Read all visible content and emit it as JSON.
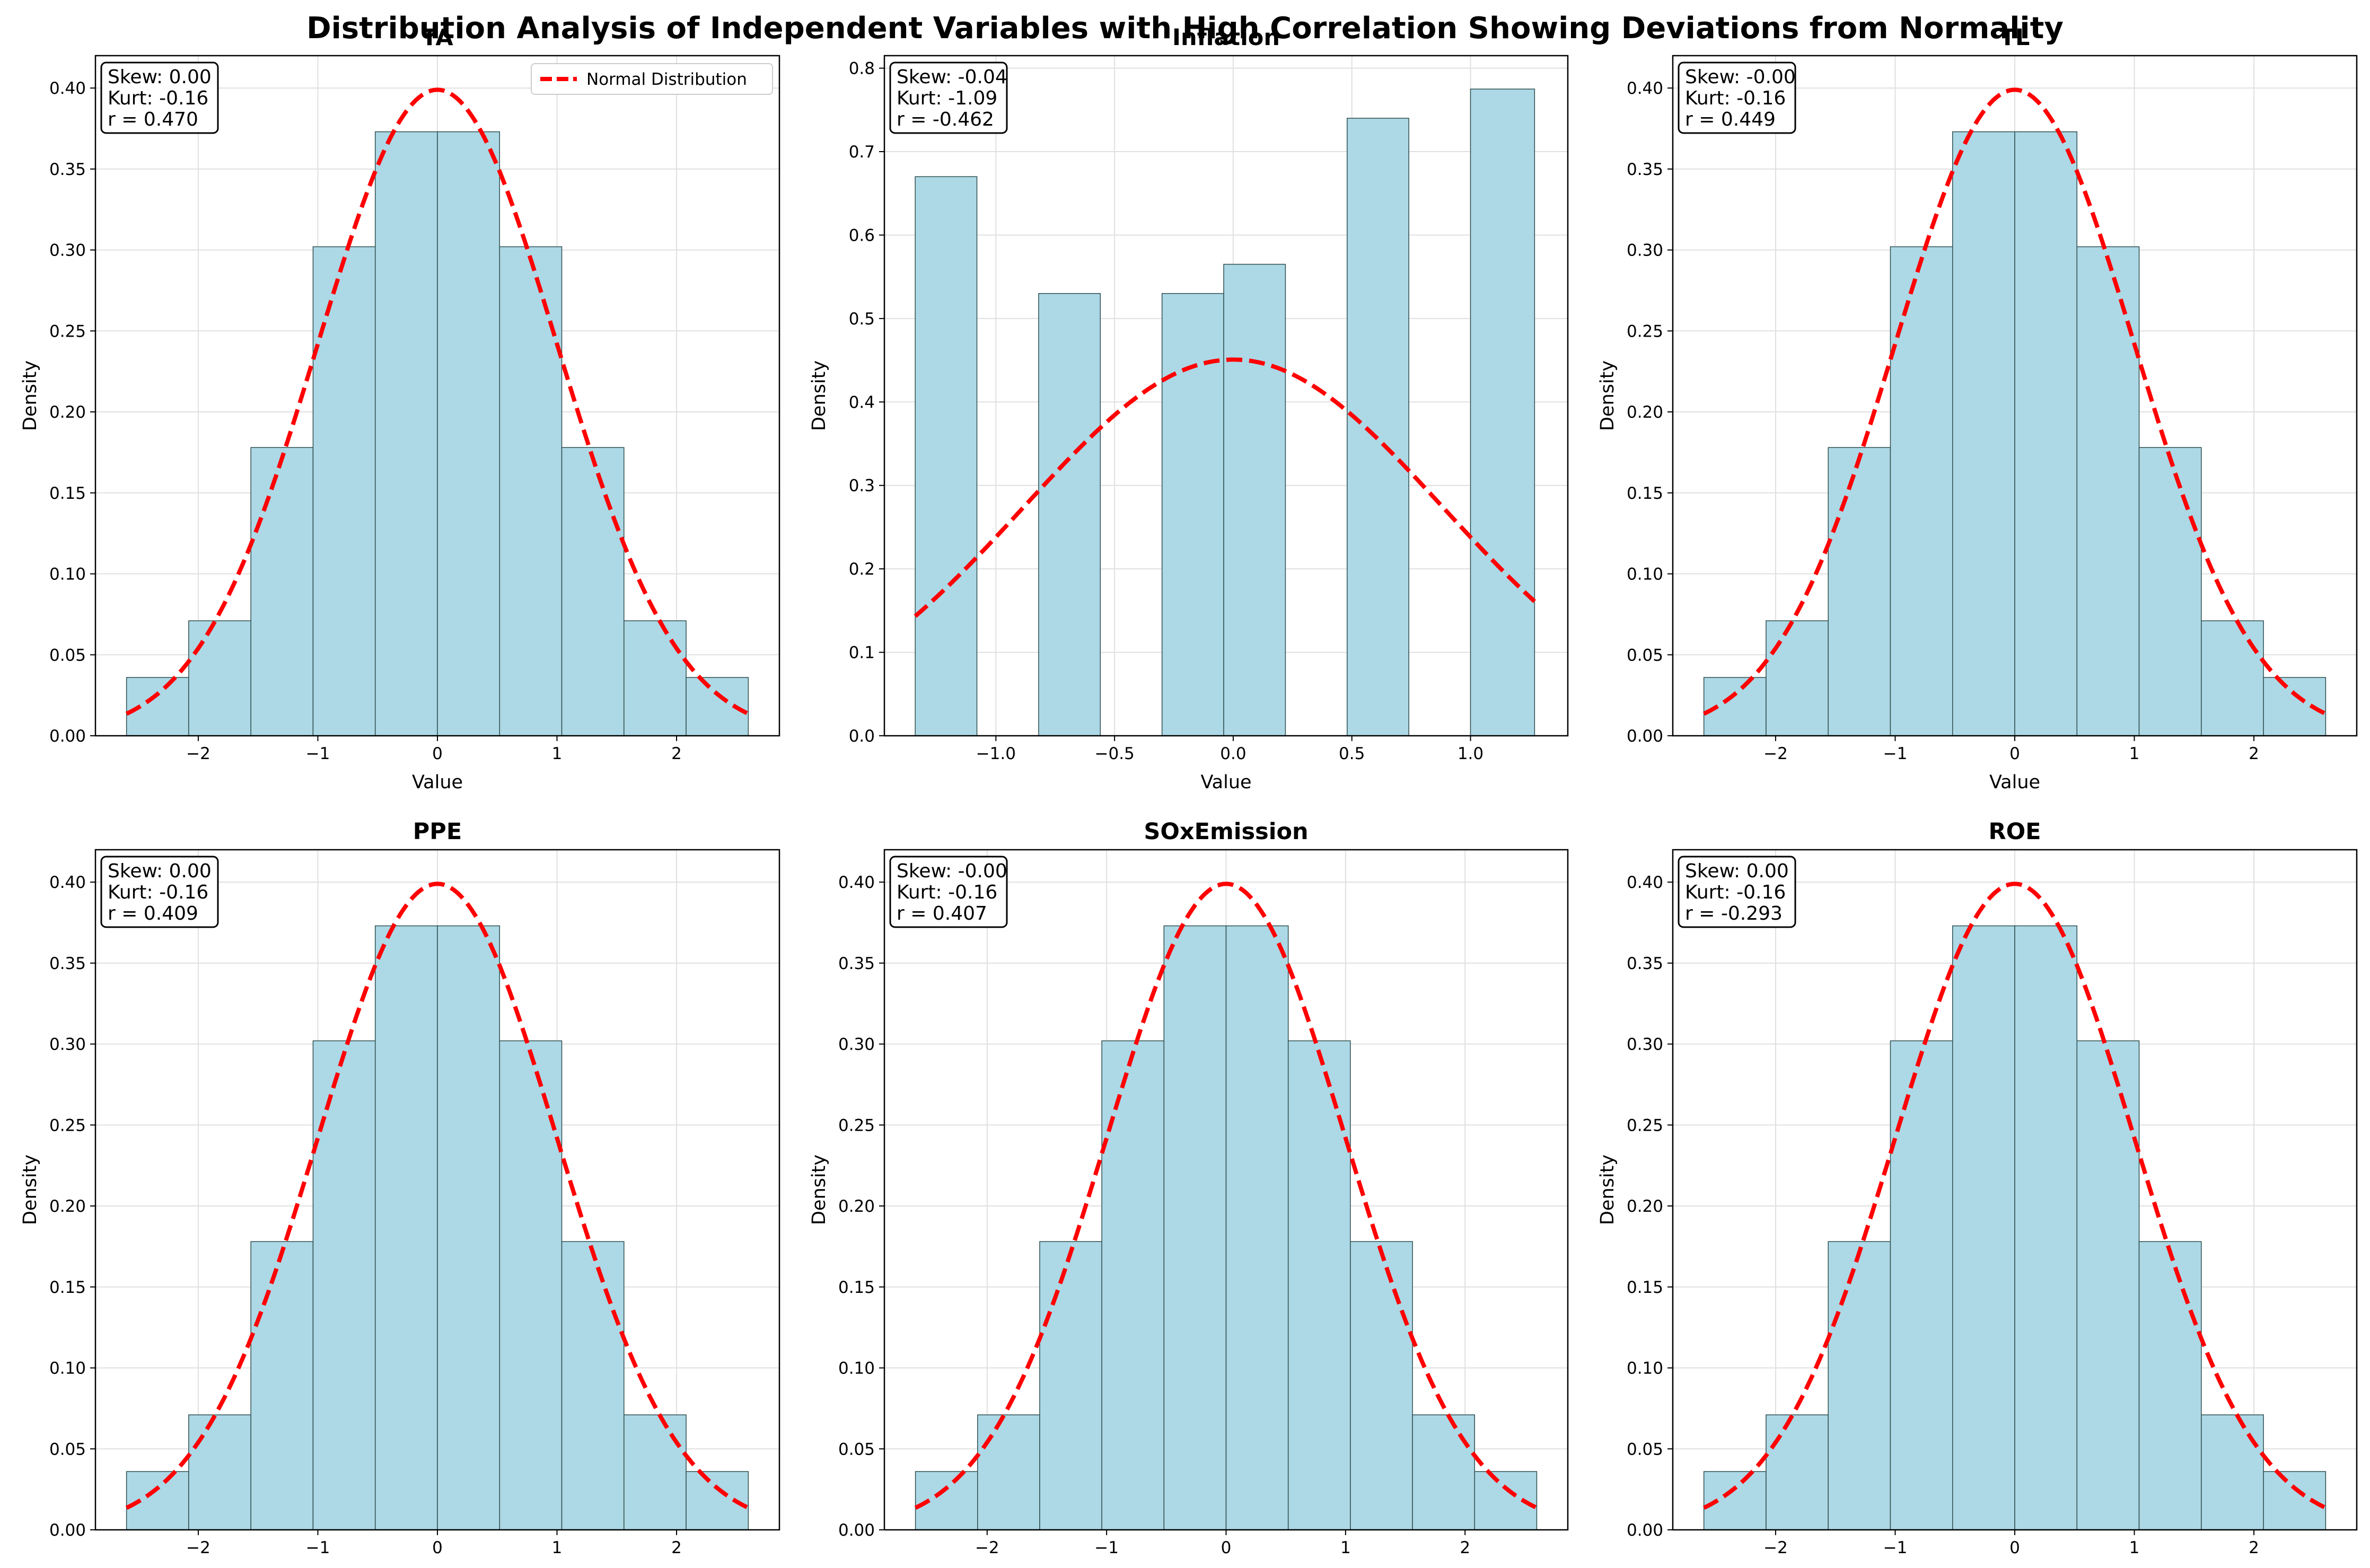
{
  "title": "Distribution Analysis of Independent Variables with High Correlation Showing Deviations from Normality",
  "colors": {
    "bar_fill": "#add8e6",
    "bar_edge": "#2f4f4f",
    "normal_curve": "#ff0000",
    "grid": "#e0e0e0"
  },
  "legend": {
    "label": "Normal Distribution",
    "location": "upper-right",
    "panel": "TA"
  },
  "chart_data": [
    {
      "type": "histogram",
      "title": "TA",
      "xlabel": "Value",
      "ylabel": "Density",
      "xlim": [
        -2.86,
        2.86
      ],
      "ylim": [
        0,
        0.42
      ],
      "xticks": [
        -2,
        -1,
        0,
        1,
        2
      ],
      "yticks": [
        0,
        0.05,
        0.1,
        0.15,
        0.2,
        0.25,
        0.3,
        0.35,
        0.4
      ],
      "tick_decimals": {
        "x": 0,
        "y": 2
      },
      "bins": [
        {
          "start": -2.6,
          "end": -2.08,
          "density": 0.036
        },
        {
          "start": -2.08,
          "end": -1.56,
          "density": 0.071
        },
        {
          "start": -1.56,
          "end": -1.04,
          "density": 0.178
        },
        {
          "start": -1.04,
          "end": -0.52,
          "density": 0.302
        },
        {
          "start": -0.52,
          "end": 0.0,
          "density": 0.373
        },
        {
          "start": 0.0,
          "end": 0.52,
          "density": 0.373
        },
        {
          "start": 0.52,
          "end": 1.04,
          "density": 0.302
        },
        {
          "start": 1.04,
          "end": 1.56,
          "density": 0.178
        },
        {
          "start": 1.56,
          "end": 2.08,
          "density": 0.071
        },
        {
          "start": 2.08,
          "end": 2.6,
          "density": 0.036
        }
      ],
      "normal_fit": {
        "mean": 0.0,
        "std": 1.0,
        "x_range": [
          -2.6,
          2.6
        ]
      },
      "stats_lines": [
        "Skew: 0.00",
        "Kurt: -0.16",
        "r = 0.470"
      ]
    },
    {
      "type": "histogram",
      "title": "Inflation",
      "xlabel": "Value",
      "ylabel": "Density",
      "xlim": [
        -1.47,
        1.41
      ],
      "ylim": [
        0,
        0.815
      ],
      "xticks": [
        -1.0,
        -0.5,
        0.0,
        0.5,
        1.0
      ],
      "yticks": [
        0,
        0.1,
        0.2,
        0.3,
        0.4,
        0.5,
        0.6,
        0.7,
        0.8
      ],
      "tick_decimals": {
        "x": 1,
        "y": 1
      },
      "bins": [
        {
          "start": -1.34,
          "end": -1.08,
          "density": 0.67
        },
        {
          "start": -0.82,
          "end": -0.56,
          "density": 0.53
        },
        {
          "start": -0.3,
          "end": -0.04,
          "density": 0.53
        },
        {
          "start": -0.04,
          "end": 0.22,
          "density": 0.565
        },
        {
          "start": 0.48,
          "end": 0.74,
          "density": 0.74
        },
        {
          "start": 1.0,
          "end": 1.27,
          "density": 0.775
        }
      ],
      "normal_fit": {
        "mean": 0.0,
        "std": 0.885,
        "x_range": [
          -1.34,
          1.27
        ]
      },
      "stats_lines": [
        "Skew: -0.04",
        "Kurt: -1.09",
        "r = -0.462"
      ]
    },
    {
      "type": "histogram",
      "title": "TL",
      "xlabel": "Value",
      "ylabel": "Density",
      "xlim": [
        -2.86,
        2.86
      ],
      "ylim": [
        0,
        0.42
      ],
      "xticks": [
        -2,
        -1,
        0,
        1,
        2
      ],
      "yticks": [
        0,
        0.05,
        0.1,
        0.15,
        0.2,
        0.25,
        0.3,
        0.35,
        0.4
      ],
      "tick_decimals": {
        "x": 0,
        "y": 2
      },
      "bins": [
        {
          "start": -2.6,
          "end": -2.08,
          "density": 0.036
        },
        {
          "start": -2.08,
          "end": -1.56,
          "density": 0.071
        },
        {
          "start": -1.56,
          "end": -1.04,
          "density": 0.178
        },
        {
          "start": -1.04,
          "end": -0.52,
          "density": 0.302
        },
        {
          "start": -0.52,
          "end": 0.0,
          "density": 0.373
        },
        {
          "start": 0.0,
          "end": 0.52,
          "density": 0.373
        },
        {
          "start": 0.52,
          "end": 1.04,
          "density": 0.302
        },
        {
          "start": 1.04,
          "end": 1.56,
          "density": 0.178
        },
        {
          "start": 1.56,
          "end": 2.08,
          "density": 0.071
        },
        {
          "start": 2.08,
          "end": 2.6,
          "density": 0.036
        }
      ],
      "normal_fit": {
        "mean": 0.0,
        "std": 1.0,
        "x_range": [
          -2.6,
          2.6
        ]
      },
      "stats_lines": [
        "Skew: -0.00",
        "Kurt: -0.16",
        "r = 0.449"
      ]
    },
    {
      "type": "histogram",
      "title": "PPE",
      "xlabel": "Value",
      "ylabel": "Density",
      "xlim": [
        -2.86,
        2.86
      ],
      "ylim": [
        0,
        0.42
      ],
      "xticks": [
        -2,
        -1,
        0,
        1,
        2
      ],
      "yticks": [
        0,
        0.05,
        0.1,
        0.15,
        0.2,
        0.25,
        0.3,
        0.35,
        0.4
      ],
      "tick_decimals": {
        "x": 0,
        "y": 2
      },
      "bins": [
        {
          "start": -2.6,
          "end": -2.08,
          "density": 0.036
        },
        {
          "start": -2.08,
          "end": -1.56,
          "density": 0.071
        },
        {
          "start": -1.56,
          "end": -1.04,
          "density": 0.178
        },
        {
          "start": -1.04,
          "end": -0.52,
          "density": 0.302
        },
        {
          "start": -0.52,
          "end": 0.0,
          "density": 0.373
        },
        {
          "start": 0.0,
          "end": 0.52,
          "density": 0.373
        },
        {
          "start": 0.52,
          "end": 1.04,
          "density": 0.302
        },
        {
          "start": 1.04,
          "end": 1.56,
          "density": 0.178
        },
        {
          "start": 1.56,
          "end": 2.08,
          "density": 0.071
        },
        {
          "start": 2.08,
          "end": 2.6,
          "density": 0.036
        }
      ],
      "normal_fit": {
        "mean": 0.0,
        "std": 1.0,
        "x_range": [
          -2.6,
          2.6
        ]
      },
      "stats_lines": [
        "Skew: 0.00",
        "Kurt: -0.16",
        "r = 0.409"
      ]
    },
    {
      "type": "histogram",
      "title": "SOxEmission",
      "xlabel": "Value",
      "ylabel": "Density",
      "xlim": [
        -2.86,
        2.86
      ],
      "ylim": [
        0,
        0.42
      ],
      "xticks": [
        -2,
        -1,
        0,
        1,
        2
      ],
      "yticks": [
        0,
        0.05,
        0.1,
        0.15,
        0.2,
        0.25,
        0.3,
        0.35,
        0.4
      ],
      "tick_decimals": {
        "x": 0,
        "y": 2
      },
      "bins": [
        {
          "start": -2.6,
          "end": -2.08,
          "density": 0.036
        },
        {
          "start": -2.08,
          "end": -1.56,
          "density": 0.071
        },
        {
          "start": -1.56,
          "end": -1.04,
          "density": 0.178
        },
        {
          "start": -1.04,
          "end": -0.52,
          "density": 0.302
        },
        {
          "start": -0.52,
          "end": 0.0,
          "density": 0.373
        },
        {
          "start": 0.0,
          "end": 0.52,
          "density": 0.373
        },
        {
          "start": 0.52,
          "end": 1.04,
          "density": 0.302
        },
        {
          "start": 1.04,
          "end": 1.56,
          "density": 0.178
        },
        {
          "start": 1.56,
          "end": 2.08,
          "density": 0.071
        },
        {
          "start": 2.08,
          "end": 2.6,
          "density": 0.036
        }
      ],
      "normal_fit": {
        "mean": 0.0,
        "std": 1.0,
        "x_range": [
          -2.6,
          2.6
        ]
      },
      "stats_lines": [
        "Skew: -0.00",
        "Kurt: -0.16",
        "r = 0.407"
      ]
    },
    {
      "type": "histogram",
      "title": "ROE",
      "xlabel": "Value",
      "ylabel": "Density",
      "xlim": [
        -2.86,
        2.86
      ],
      "ylim": [
        0,
        0.42
      ],
      "xticks": [
        -2,
        -1,
        0,
        1,
        2
      ],
      "yticks": [
        0,
        0.05,
        0.1,
        0.15,
        0.2,
        0.25,
        0.3,
        0.35,
        0.4
      ],
      "tick_decimals": {
        "x": 0,
        "y": 2
      },
      "bins": [
        {
          "start": -2.6,
          "end": -2.08,
          "density": 0.036
        },
        {
          "start": -2.08,
          "end": -1.56,
          "density": 0.071
        },
        {
          "start": -1.56,
          "end": -1.04,
          "density": 0.178
        },
        {
          "start": -1.04,
          "end": -0.52,
          "density": 0.302
        },
        {
          "start": -0.52,
          "end": 0.0,
          "density": 0.373
        },
        {
          "start": 0.0,
          "end": 0.52,
          "density": 0.373
        },
        {
          "start": 0.52,
          "end": 1.04,
          "density": 0.302
        },
        {
          "start": 1.04,
          "end": 1.56,
          "density": 0.178
        },
        {
          "start": 1.56,
          "end": 2.08,
          "density": 0.071
        },
        {
          "start": 2.08,
          "end": 2.6,
          "density": 0.036
        }
      ],
      "normal_fit": {
        "mean": 0.0,
        "std": 1.0,
        "x_range": [
          -2.6,
          2.6
        ]
      },
      "stats_lines": [
        "Skew: 0.00",
        "Kurt: -0.16",
        "r = -0.293"
      ]
    }
  ]
}
